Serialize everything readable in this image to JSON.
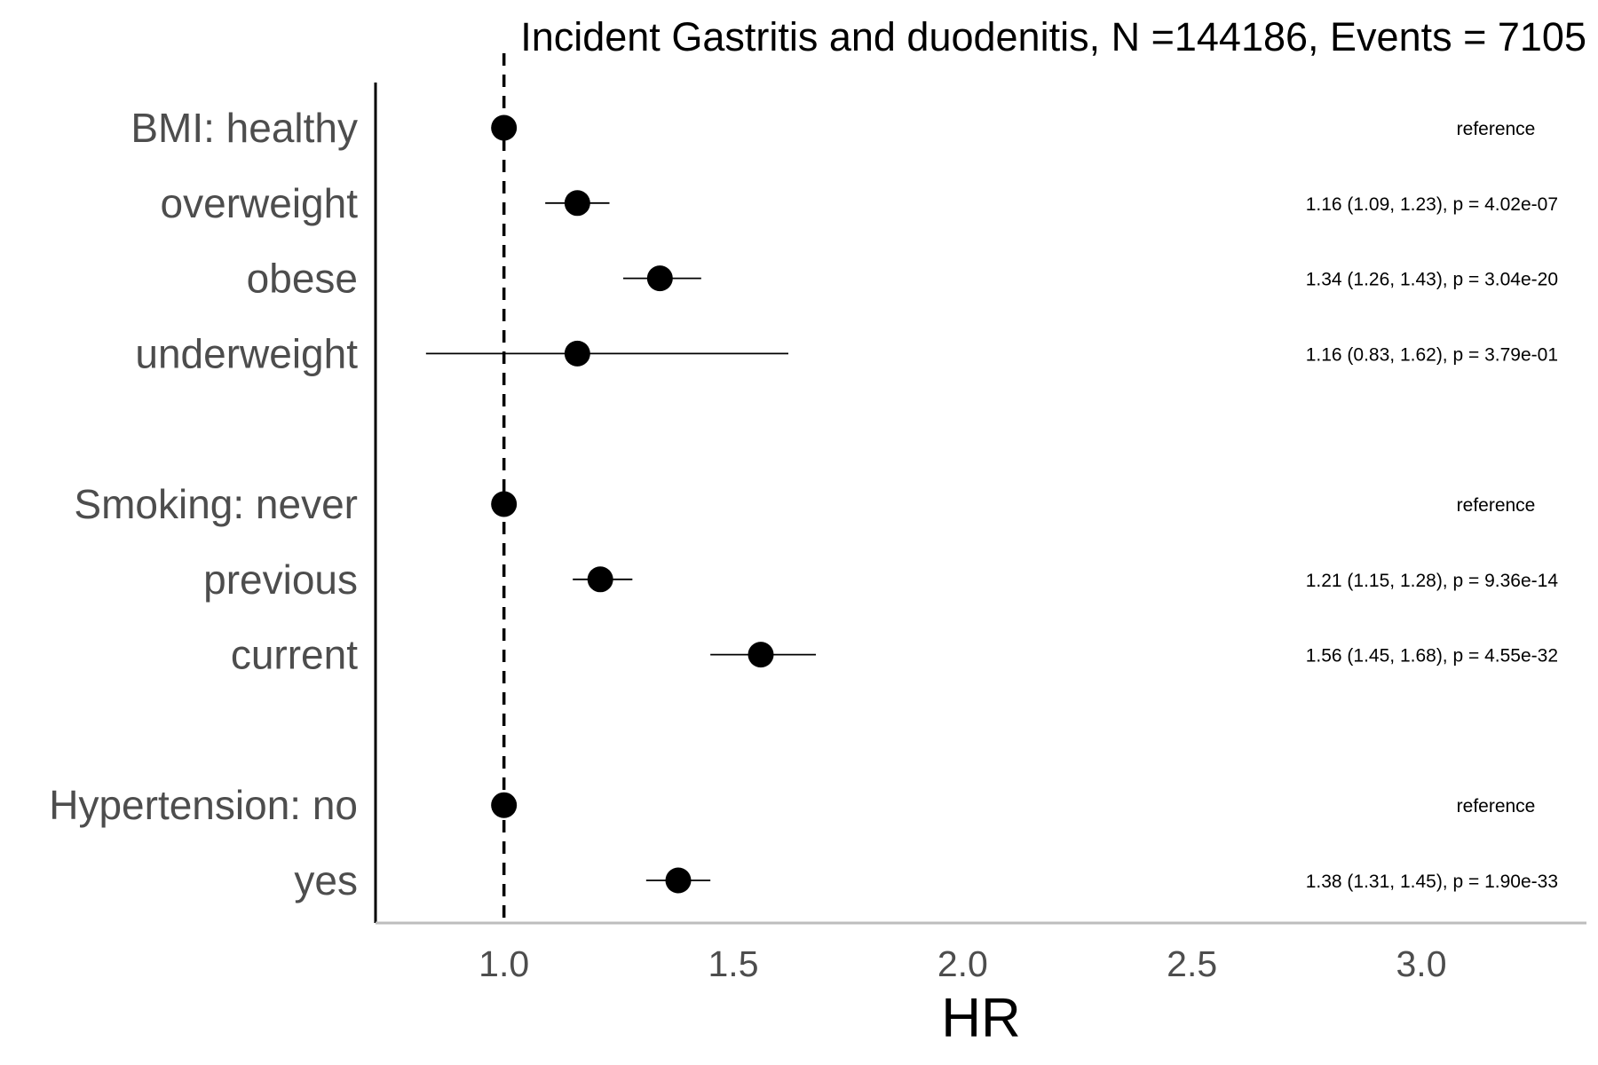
{
  "chart_data": {
    "type": "scatter",
    "subtype": "forest-plot",
    "title": "Incident Gastritis and duodenitis, N =144186, Events = 7105",
    "xlabel": "HR",
    "ylabel": "",
    "xlim": [
      0.72,
      3.36
    ],
    "xticks": [
      1.0,
      1.5,
      2.0,
      2.5,
      3.0
    ],
    "xtick_labels": [
      "1.0",
      "1.5",
      "2.0",
      "2.5",
      "3.0"
    ],
    "reference_line": 1.0,
    "grid": false,
    "legend": "none",
    "rows": [
      {
        "label": "BMI: healthy",
        "hr": 1.0,
        "lower": 1.0,
        "upper": 1.0,
        "annotation": "reference"
      },
      {
        "label": "overweight",
        "hr": 1.16,
        "lower": 1.09,
        "upper": 1.23,
        "annotation": "1.16 (1.09, 1.23), p = 4.02e-07"
      },
      {
        "label": "obese",
        "hr": 1.34,
        "lower": 1.26,
        "upper": 1.43,
        "annotation": "1.34 (1.26, 1.43), p = 3.04e-20"
      },
      {
        "label": "underweight",
        "hr": 1.16,
        "lower": 0.83,
        "upper": 1.62,
        "annotation": "1.16 (0.83, 1.62), p = 3.79e-01"
      },
      {
        "label": "",
        "hr": null,
        "lower": null,
        "upper": null,
        "annotation": ""
      },
      {
        "label": "Smoking: never",
        "hr": 1.0,
        "lower": 1.0,
        "upper": 1.0,
        "annotation": "reference"
      },
      {
        "label": "previous",
        "hr": 1.21,
        "lower": 1.15,
        "upper": 1.28,
        "annotation": "1.21 (1.15, 1.28), p = 9.36e-14"
      },
      {
        "label": "current",
        "hr": 1.56,
        "lower": 1.45,
        "upper": 1.68,
        "annotation": "1.56 (1.45, 1.68), p = 4.55e-32"
      },
      {
        "label": "",
        "hr": null,
        "lower": null,
        "upper": null,
        "annotation": ""
      },
      {
        "label": "Hypertension: no",
        "hr": 1.0,
        "lower": 1.0,
        "upper": 1.0,
        "annotation": "reference"
      },
      {
        "label": "yes",
        "hr": 1.38,
        "lower": 1.31,
        "upper": 1.45,
        "annotation": "1.38 (1.31, 1.45), p = 1.90e-33"
      }
    ],
    "colors": {
      "point": "#000000",
      "axis_x": "#bdbdbd",
      "axis_y": "#000000",
      "label": "#4d4d4d"
    }
  }
}
